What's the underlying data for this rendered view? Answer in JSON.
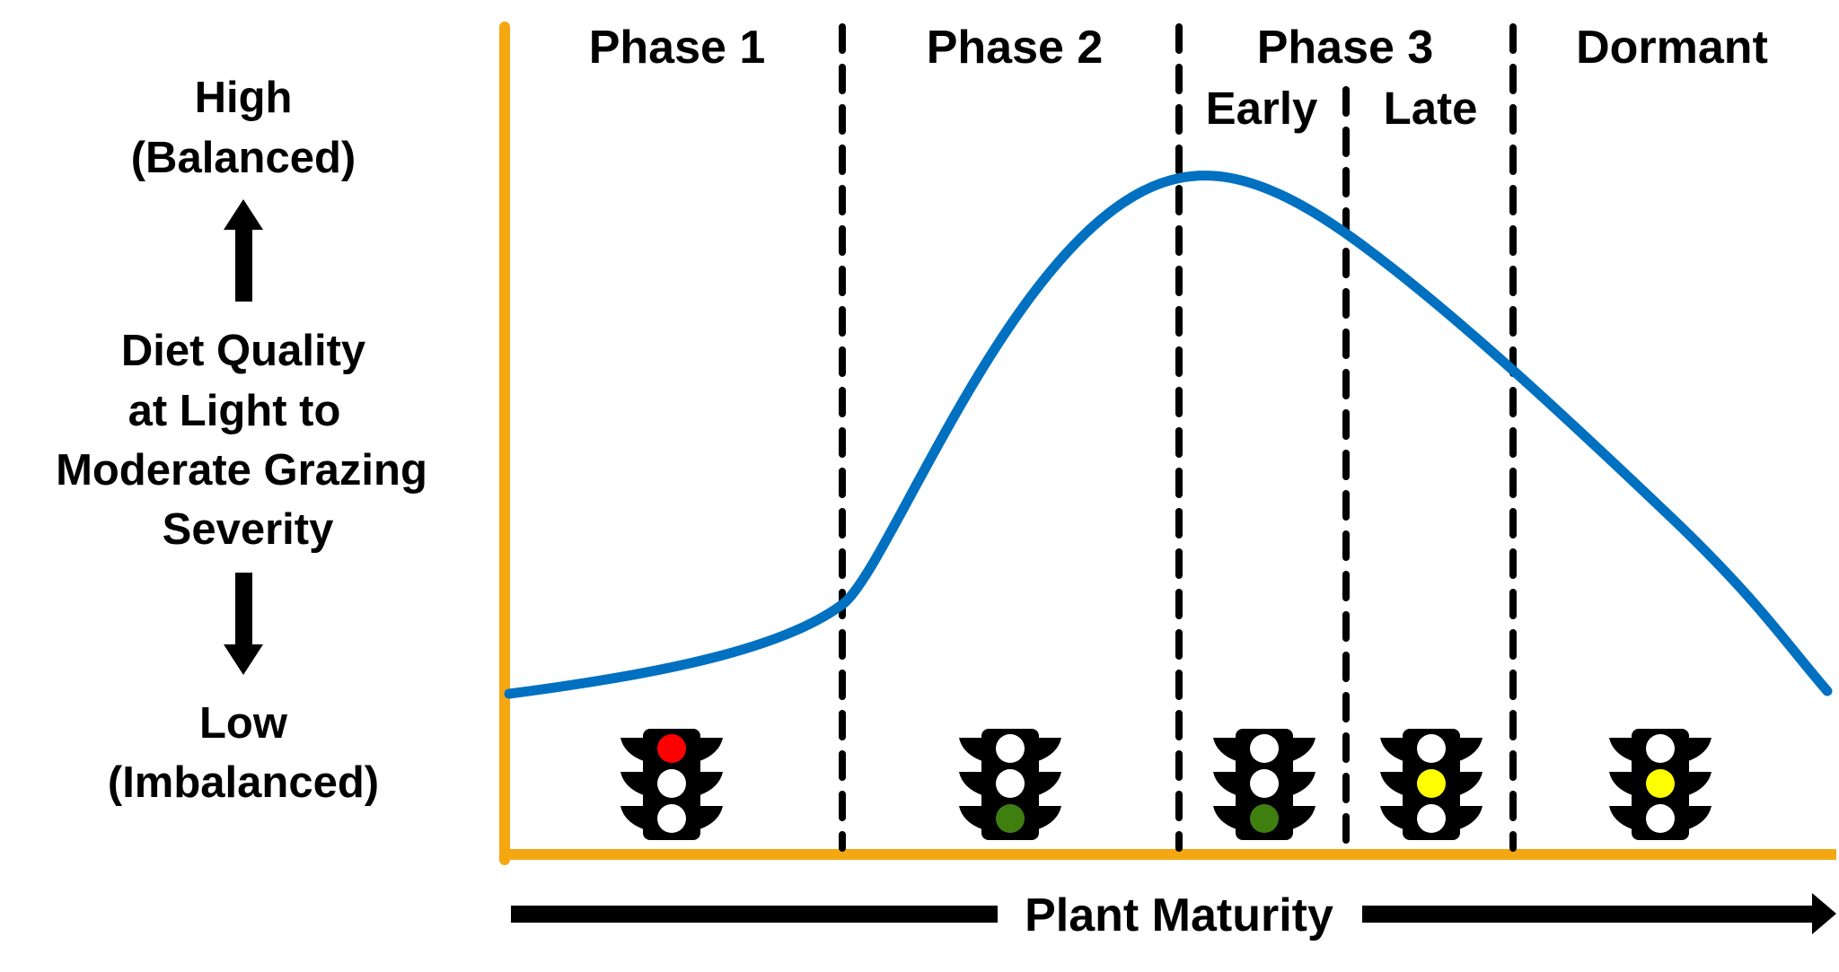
{
  "colors": {
    "axis": "#F5A712",
    "curve": "#0070C0",
    "divider": "#000000",
    "light_housing": "#000000",
    "light_off": "#FFFFFF",
    "red": "#FF0000",
    "green": "#3F7F0F",
    "yellow": "#FFFF00"
  },
  "y_axis": {
    "high_label": "High",
    "high_sub": "(Balanced)",
    "title_lines": [
      "Diet Quality",
      "at Light to",
      "Moderate Grazing",
      "Severity"
    ],
    "low_label": "Low",
    "low_sub": "(Imbalanced)"
  },
  "x_axis": {
    "label": "Plant Maturity"
  },
  "phases": [
    {
      "label": "Phase 1"
    },
    {
      "label": "Phase 2"
    },
    {
      "label": "Phase 3"
    },
    {
      "label": "Dormant"
    }
  ],
  "subphases": [
    {
      "label": "Early"
    },
    {
      "label": "Late"
    }
  ],
  "traffic_lights": [
    {
      "stage": "Phase 1",
      "lit": "red"
    },
    {
      "stage": "Phase 2",
      "lit": "green"
    },
    {
      "stage": "Phase 3 Early",
      "lit": "green"
    },
    {
      "stage": "Phase 3 Late",
      "lit": "yellow"
    },
    {
      "stage": "Dormant",
      "lit": "yellow"
    }
  ]
}
